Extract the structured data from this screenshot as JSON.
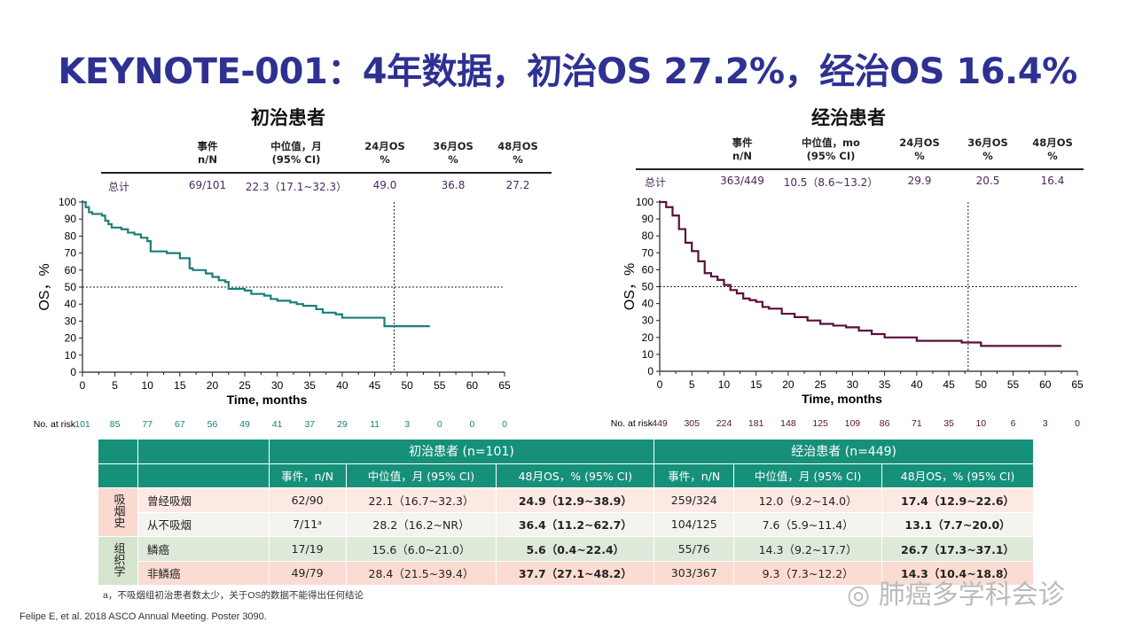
{
  "title": "KEYNOTE-001：4年数据，初治OS 27.2%，经治OS 16.4%",
  "panels": [
    {
      "title": "初治患者",
      "headers": [
        [
          "事件",
          "n/N"
        ],
        [
          "中位值，月",
          "(95% CI)"
        ],
        [
          "24月OS",
          "%"
        ],
        [
          "36月OS",
          "%"
        ],
        [
          "48月OS",
          "%"
        ]
      ],
      "row": [
        "总计",
        "69/101",
        "22.3（17.1~32.3）",
        "49.0",
        "36.8",
        "27.2"
      ]
    },
    {
      "title": "经治患者",
      "headers": [
        [
          "事件",
          "n/N"
        ],
        [
          "中位值，mo",
          "(95% CI)"
        ],
        [
          "24月OS",
          "%"
        ],
        [
          "36月OS",
          "%"
        ],
        [
          "48月OS",
          "%"
        ]
      ],
      "row": [
        "总计",
        "363/449",
        "10.5（8.6~13.2）",
        "29.9",
        "20.5",
        "16.4"
      ]
    }
  ],
  "chart_data": [
    {
      "type": "line",
      "subtype": "kaplan-meier",
      "xlabel": "Time, months",
      "ylabel": "OS，%",
      "xlim": [
        0,
        65
      ],
      "ylim": [
        0,
        100
      ],
      "xticks": [
        0,
        5,
        10,
        15,
        20,
        25,
        30,
        35,
        40,
        45,
        50,
        55,
        60,
        65
      ],
      "yticks": [
        0,
        10,
        20,
        30,
        40,
        50,
        60,
        70,
        80,
        90,
        100
      ],
      "reference_lines": {
        "y": 50,
        "x": 48
      },
      "color": "#1a7f78",
      "x": [
        0,
        0.5,
        1,
        1.5,
        3,
        3.5,
        4,
        4.5,
        6,
        7,
        8,
        9,
        10,
        10.5,
        13,
        15,
        16.5,
        17,
        19,
        20,
        21,
        22,
        22.5,
        25,
        26,
        28,
        29,
        30,
        32,
        33,
        34,
        36,
        37,
        39,
        40,
        46.5,
        53.5
      ],
      "y": [
        100,
        97,
        94,
        93,
        92,
        89,
        87,
        85,
        84,
        82,
        81,
        79,
        77,
        71,
        70,
        67,
        61,
        60,
        58,
        56,
        54,
        53,
        49,
        48,
        46,
        45,
        43,
        42,
        41,
        40,
        39,
        37,
        35,
        34,
        32,
        27,
        27
      ],
      "at_risk_label": "No. at risk",
      "at_risk": [
        101,
        85,
        77,
        67,
        56,
        49,
        41,
        37,
        29,
        11,
        3,
        0,
        0,
        0
      ]
    },
    {
      "type": "line",
      "subtype": "kaplan-meier",
      "xlabel": "Time, months",
      "ylabel": "OS，%",
      "xlim": [
        0,
        65
      ],
      "ylim": [
        0,
        100
      ],
      "xticks": [
        0,
        5,
        10,
        15,
        20,
        25,
        30,
        35,
        40,
        45,
        50,
        55,
        60,
        65
      ],
      "yticks": [
        0,
        10,
        20,
        30,
        40,
        50,
        60,
        70,
        80,
        90,
        100
      ],
      "reference_lines": {
        "y": 50,
        "x": 48
      },
      "color": "#5a0f3a",
      "x": [
        0,
        1,
        2,
        3,
        4,
        5,
        6,
        7,
        8,
        9,
        10,
        11,
        12,
        13,
        14,
        15,
        16,
        17,
        19,
        21,
        23,
        25,
        27,
        29,
        31,
        33,
        35,
        39,
        40,
        45,
        47,
        50,
        62.5
      ],
      "y": [
        100,
        97,
        92,
        84,
        76,
        71,
        65,
        58,
        56,
        54,
        51,
        48,
        46,
        43,
        42,
        41,
        38,
        37,
        34,
        32,
        30,
        28,
        27,
        26,
        24,
        22,
        20,
        20,
        18,
        18,
        17,
        15,
        15
      ],
      "at_risk_label": "No. at risk",
      "at_risk": [
        449,
        305,
        224,
        181,
        148,
        125,
        109,
        86,
        71,
        35,
        10,
        6,
        3,
        0
      ]
    }
  ],
  "table": {
    "groups": [
      "初治患者 (n=101)",
      "经治患者 (n=449)"
    ],
    "cols": [
      "事件，n/N",
      "中位值，月 (95% CI)",
      "48月OS，% (95% CI)",
      "事件，n/N",
      "中位值，月 (95% CI)",
      "48月OS，% (95% CI)"
    ],
    "sections": [
      {
        "label": "吸烟史"
      },
      {
        "label": "组织学"
      }
    ],
    "rows": [
      [
        "曾经吸烟",
        "62/90",
        "22.1（16.7~32.3）",
        "24.9（12.9~38.9）",
        "259/324",
        "12.0（9.2~14.0）",
        "17.4（12.9~22.6）"
      ],
      [
        "从不吸烟",
        "7/11ᵃ",
        "28.2（16.2~NR）",
        "36.4（11.2~62.7）",
        "104/125",
        "7.6（5.9~11.4）",
        "13.1（7.7~20.0）"
      ],
      [
        "鳞癌",
        "17/19",
        "15.6（6.0~21.0）",
        "5.6（0.4~22.4）",
        "55/76",
        "14.3（9.2~17.7）",
        "26.7（17.3~37.1）"
      ],
      [
        "非鳞癌",
        "49/79",
        "28.4（21.5~39.4）",
        "37.7（27.1~48.2）",
        "303/367",
        "9.3（7.3~12.2）",
        "14.3（10.4~18.8）"
      ]
    ]
  },
  "footnote": "a，不吸烟组初治患者数太少，关于OS的数据不能得出任何结论",
  "citation": "Felipe E,  et al. 2018 ASCO Annual Meeting. Poster 3090.",
  "watermark": "肺癌多学科会诊"
}
